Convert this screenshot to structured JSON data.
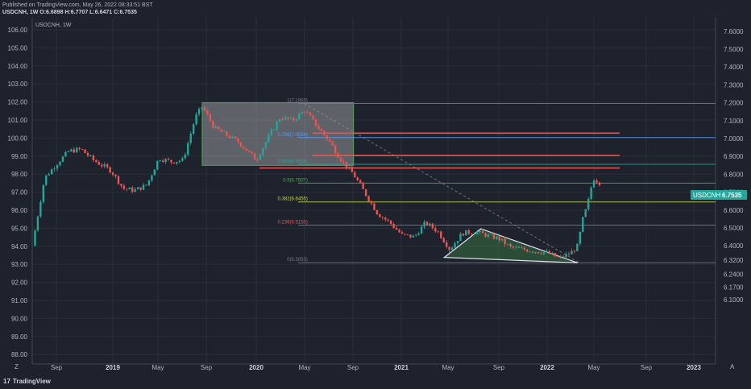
{
  "header": {
    "published": "Published on TradingView.com, May 26, 2022 08:33:51 BST",
    "ohlc": "USDCNH, 1W O:6.6898 H:6.7707 L:6.6471 C:6.7535"
  },
  "footer": {
    "logo_text": "TradingView",
    "logo_icon": "17"
  },
  "chart_title": "USDCNH, 1W",
  "last_price": {
    "symbol": "USDCNH",
    "value": "6.7535",
    "color": "#26a69a"
  },
  "colors": {
    "up": "#26a69a",
    "down": "#ef5350",
    "background": "#1e222d"
  },
  "chart_data": {
    "type": "candlestick",
    "symbol": "USDCNH",
    "timeframe": "1W",
    "x_ticks": [
      "Sep",
      "2019",
      "May",
      "Sep",
      "2020",
      "May",
      "Sep",
      "2021",
      "May",
      "Sep",
      "2022",
      "May",
      "Sep",
      "2023"
    ],
    "left_axis_ticks": [
      "106.00",
      "105.00",
      "104.00",
      "103.00",
      "102.00",
      "101.00",
      "100.00",
      "99.00",
      "98.00",
      "97.00",
      "96.00",
      "95.00",
      "94.00",
      "93.00",
      "92.00",
      "91.00",
      "90.00",
      "89.00",
      "88.00"
    ],
    "right_axis_ticks": [
      "7.6000",
      "7.5000",
      "7.4000",
      "7.3000",
      "7.2000",
      "7.1000",
      "7.0000",
      "6.9000",
      "6.8000",
      "6.7000",
      "6.6000",
      "6.5000",
      "6.4000",
      "6.3200",
      "6.2400",
      "6.1700",
      "6.1000"
    ],
    "close_path": [
      [
        "2018-07-01",
        6.4
      ],
      [
        "2018-08-01",
        6.78
      ],
      [
        "2018-09-01",
        6.86
      ],
      [
        "2018-10-01",
        6.93
      ],
      [
        "2018-11-01",
        6.94
      ],
      [
        "2018-12-01",
        6.88
      ],
      [
        "2019-01-15",
        6.82
      ],
      [
        "2019-02-15",
        6.72
      ],
      [
        "2019-03-15",
        6.71
      ],
      [
        "2019-04-15",
        6.74
      ],
      [
        "2019-05-15",
        6.89
      ],
      [
        "2019-06-15",
        6.87
      ],
      [
        "2019-07-15",
        6.88
      ],
      [
        "2019-08-15",
        7.12
      ],
      [
        "2019-09-01",
        7.18
      ],
      [
        "2019-10-01",
        7.06
      ],
      [
        "2019-11-01",
        7.02
      ],
      [
        "2019-12-01",
        6.98
      ],
      [
        "2020-01-15",
        6.88
      ],
      [
        "2020-02-15",
        7.01
      ],
      [
        "2020-03-15",
        7.12
      ],
      [
        "2020-04-15",
        7.1
      ],
      [
        "2020-05-15",
        7.16
      ],
      [
        "2020-06-15",
        7.07
      ],
      [
        "2020-07-15",
        6.99
      ],
      [
        "2020-08-15",
        6.88
      ],
      [
        "2020-09-15",
        6.8
      ],
      [
        "2020-10-15",
        6.69
      ],
      [
        "2020-11-15",
        6.58
      ],
      [
        "2020-12-15",
        6.53
      ],
      [
        "2021-01-15",
        6.46
      ],
      [
        "2021-02-15",
        6.45
      ],
      [
        "2021-03-15",
        6.53
      ],
      [
        "2021-04-15",
        6.48
      ],
      [
        "2021-05-15",
        6.38
      ],
      [
        "2021-06-15",
        6.47
      ],
      [
        "2021-07-15",
        6.48
      ],
      [
        "2021-08-15",
        6.46
      ],
      [
        "2021-09-15",
        6.44
      ],
      [
        "2021-10-15",
        6.39
      ],
      [
        "2021-11-15",
        6.38
      ],
      [
        "2021-12-15",
        6.37
      ],
      [
        "2022-01-15",
        6.36
      ],
      [
        "2022-02-15",
        6.33
      ],
      [
        "2022-03-15",
        6.36
      ],
      [
        "2022-04-01",
        6.4
      ],
      [
        "2022-04-15",
        6.56
      ],
      [
        "2022-04-25",
        6.62
      ],
      [
        "2022-05-10",
        6.78
      ],
      [
        "2022-05-26",
        6.7535
      ]
    ],
    "annotations": {
      "rectangle": {
        "from": "2019-09-01",
        "to": "2020-09-15",
        "low": 6.85,
        "high": 7.2
      },
      "fib_retracement": {
        "from_date": "2020-05-15",
        "to_date": "2022-05-26",
        "levels": [
          {
            "label": "1(7.1960)",
            "value": 7.196,
            "color": "#787b86"
          },
          {
            "label": "0.786(7.0054)",
            "value": 7.0054,
            "color": "#5b9cf6"
          },
          {
            "label": "0.618(6.8558)",
            "value": 6.8558,
            "color": "#26a69a"
          },
          {
            "label": "0.5(6.7507)",
            "value": 6.7507,
            "color": "#4caf50"
          },
          {
            "label": "0.382(6.6455)",
            "value": 6.6455,
            "color": "#c6d94a"
          },
          {
            "label": "0.236(6.5155)",
            "value": 6.5155,
            "color": "#ef5350"
          },
          {
            "label": "0(6.3053)",
            "value": 6.3053,
            "color": "#787b86"
          }
        ]
      },
      "resistance_lines": [
        7.03,
        6.905,
        6.835
      ],
      "triangle": [
        [
          "2021-05-01",
          6.335
        ],
        [
          "2021-08-01",
          6.495
        ],
        [
          "2022-04-01",
          6.305
        ]
      ]
    }
  }
}
